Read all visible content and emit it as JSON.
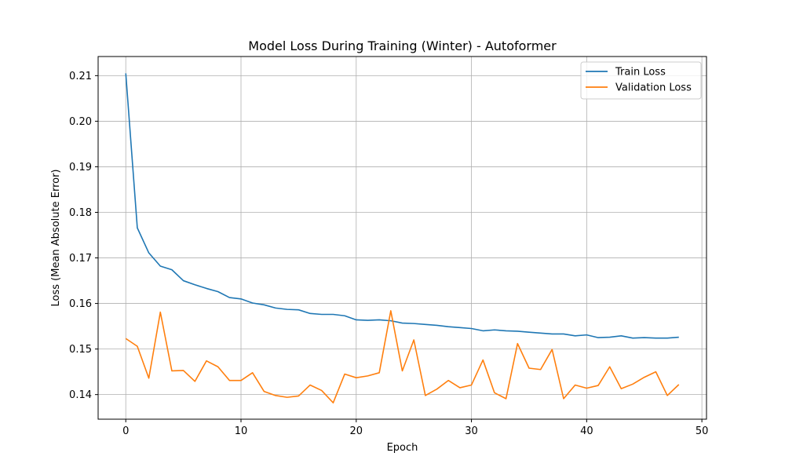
{
  "chart_data": {
    "type": "line",
    "title": "Model Loss During Training (Winter) - Autoformer",
    "xlabel": "Epoch",
    "ylabel": "Loss (Mean Absolute Error)",
    "xlim": [
      -2.4,
      50.4
    ],
    "ylim": [
      0.1346,
      0.2142
    ],
    "xticks": [
      0,
      10,
      20,
      30,
      40,
      50
    ],
    "yticks": [
      0.14,
      0.15,
      0.16,
      0.17,
      0.18,
      0.19,
      0.2,
      0.21
    ],
    "ytick_labels": [
      "0.14",
      "0.15",
      "0.16",
      "0.17",
      "0.18",
      "0.19",
      "0.20",
      "0.21"
    ],
    "grid": true,
    "legend_position": "top-right",
    "x": [
      0,
      1,
      2,
      3,
      4,
      5,
      6,
      7,
      8,
      9,
      10,
      11,
      12,
      13,
      14,
      15,
      16,
      17,
      18,
      19,
      20,
      21,
      22,
      23,
      24,
      25,
      26,
      27,
      28,
      29,
      30,
      31,
      32,
      33,
      34,
      35,
      36,
      37,
      38,
      39,
      40,
      41,
      42,
      43,
      44,
      45,
      46,
      47,
      48
    ],
    "series": [
      {
        "name": "Train Loss",
        "color": "#1f77b4",
        "values": [
          0.2105,
          0.1766,
          0.1711,
          0.1682,
          0.1674,
          0.165,
          0.1641,
          0.1633,
          0.1626,
          0.1613,
          0.161,
          0.1601,
          0.1597,
          0.159,
          0.1587,
          0.1586,
          0.1578,
          0.1576,
          0.1576,
          0.1573,
          0.1564,
          0.1563,
          0.1564,
          0.1562,
          0.1557,
          0.1556,
          0.1554,
          0.1552,
          0.1549,
          0.1547,
          0.1545,
          0.154,
          0.1542,
          0.154,
          0.1539,
          0.1537,
          0.1535,
          0.1533,
          0.1533,
          0.1529,
          0.1531,
          0.1525,
          0.1526,
          0.1529,
          0.1524,
          0.1525,
          0.1524,
          0.1524,
          0.1526
        ]
      },
      {
        "name": "Validation Loss",
        "color": "#ff7f0e",
        "values": [
          0.1523,
          0.1506,
          0.1436,
          0.1581,
          0.1452,
          0.1453,
          0.1429,
          0.1474,
          0.1461,
          0.1431,
          0.1431,
          0.1448,
          0.1407,
          0.1398,
          0.1394,
          0.1397,
          0.1421,
          0.1409,
          0.1382,
          0.1445,
          0.1437,
          0.1441,
          0.1448,
          0.1584,
          0.1452,
          0.152,
          0.1398,
          0.1412,
          0.1431,
          0.1415,
          0.1421,
          0.1476,
          0.1404,
          0.1391,
          0.1512,
          0.1458,
          0.1455,
          0.1499,
          0.1391,
          0.1421,
          0.1414,
          0.142,
          0.1461,
          0.1413,
          0.1423,
          0.1438,
          0.145,
          0.1398,
          0.1422
        ]
      }
    ]
  }
}
